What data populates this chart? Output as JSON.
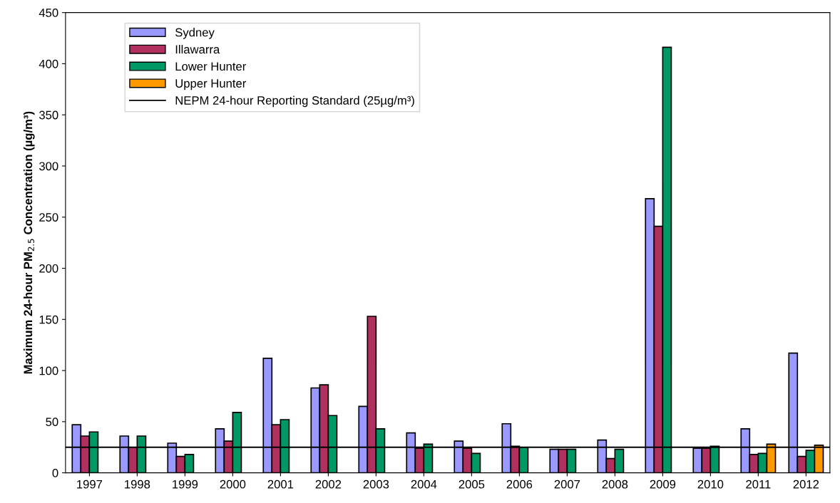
{
  "chart_data": {
    "type": "bar",
    "ylabel": "Maximum 24-hour PM$_{2.5}$ Concentration (µg/m³)",
    "categories": [
      "1997",
      "1998",
      "1999",
      "2000",
      "2001",
      "2002",
      "2003",
      "2004",
      "2005",
      "2006",
      "2007",
      "2008",
      "2009",
      "2010",
      "2011",
      "2012"
    ],
    "series": [
      {
        "name": "Sydney",
        "color": "#9999ff",
        "values": [
          47,
          36,
          29,
          43,
          112,
          83,
          65,
          39,
          31,
          48,
          23,
          32,
          268,
          24,
          43,
          117
        ]
      },
      {
        "name": "Illawarra",
        "color": "#b03060",
        "values": [
          36,
          25,
          16,
          31,
          47,
          86,
          153,
          24,
          24,
          26,
          23,
          14,
          241,
          24,
          18,
          16
        ]
      },
      {
        "name": "Lower Hunter",
        "color": "#009966",
        "values": [
          40,
          36,
          18,
          59,
          52,
          56,
          43,
          28,
          19,
          25,
          23,
          23,
          416,
          26,
          19,
          22
        ]
      },
      {
        "name": "Upper Hunter",
        "color": "#ff9900",
        "values": [
          null,
          null,
          null,
          null,
          null,
          null,
          null,
          null,
          null,
          null,
          null,
          null,
          null,
          null,
          28,
          27
        ]
      }
    ],
    "ref_lines": [
      {
        "axis": "y",
        "value": 25,
        "label": "NEPM 24-hour Reporting Standard (25µg/m³)",
        "color": "#000000",
        "line_style": "solid"
      }
    ],
    "ylim": [
      0,
      450
    ],
    "yticks": [
      0,
      50,
      100,
      150,
      200,
      250,
      300,
      350,
      400,
      450
    ],
    "grid": false,
    "legend": "top left"
  }
}
